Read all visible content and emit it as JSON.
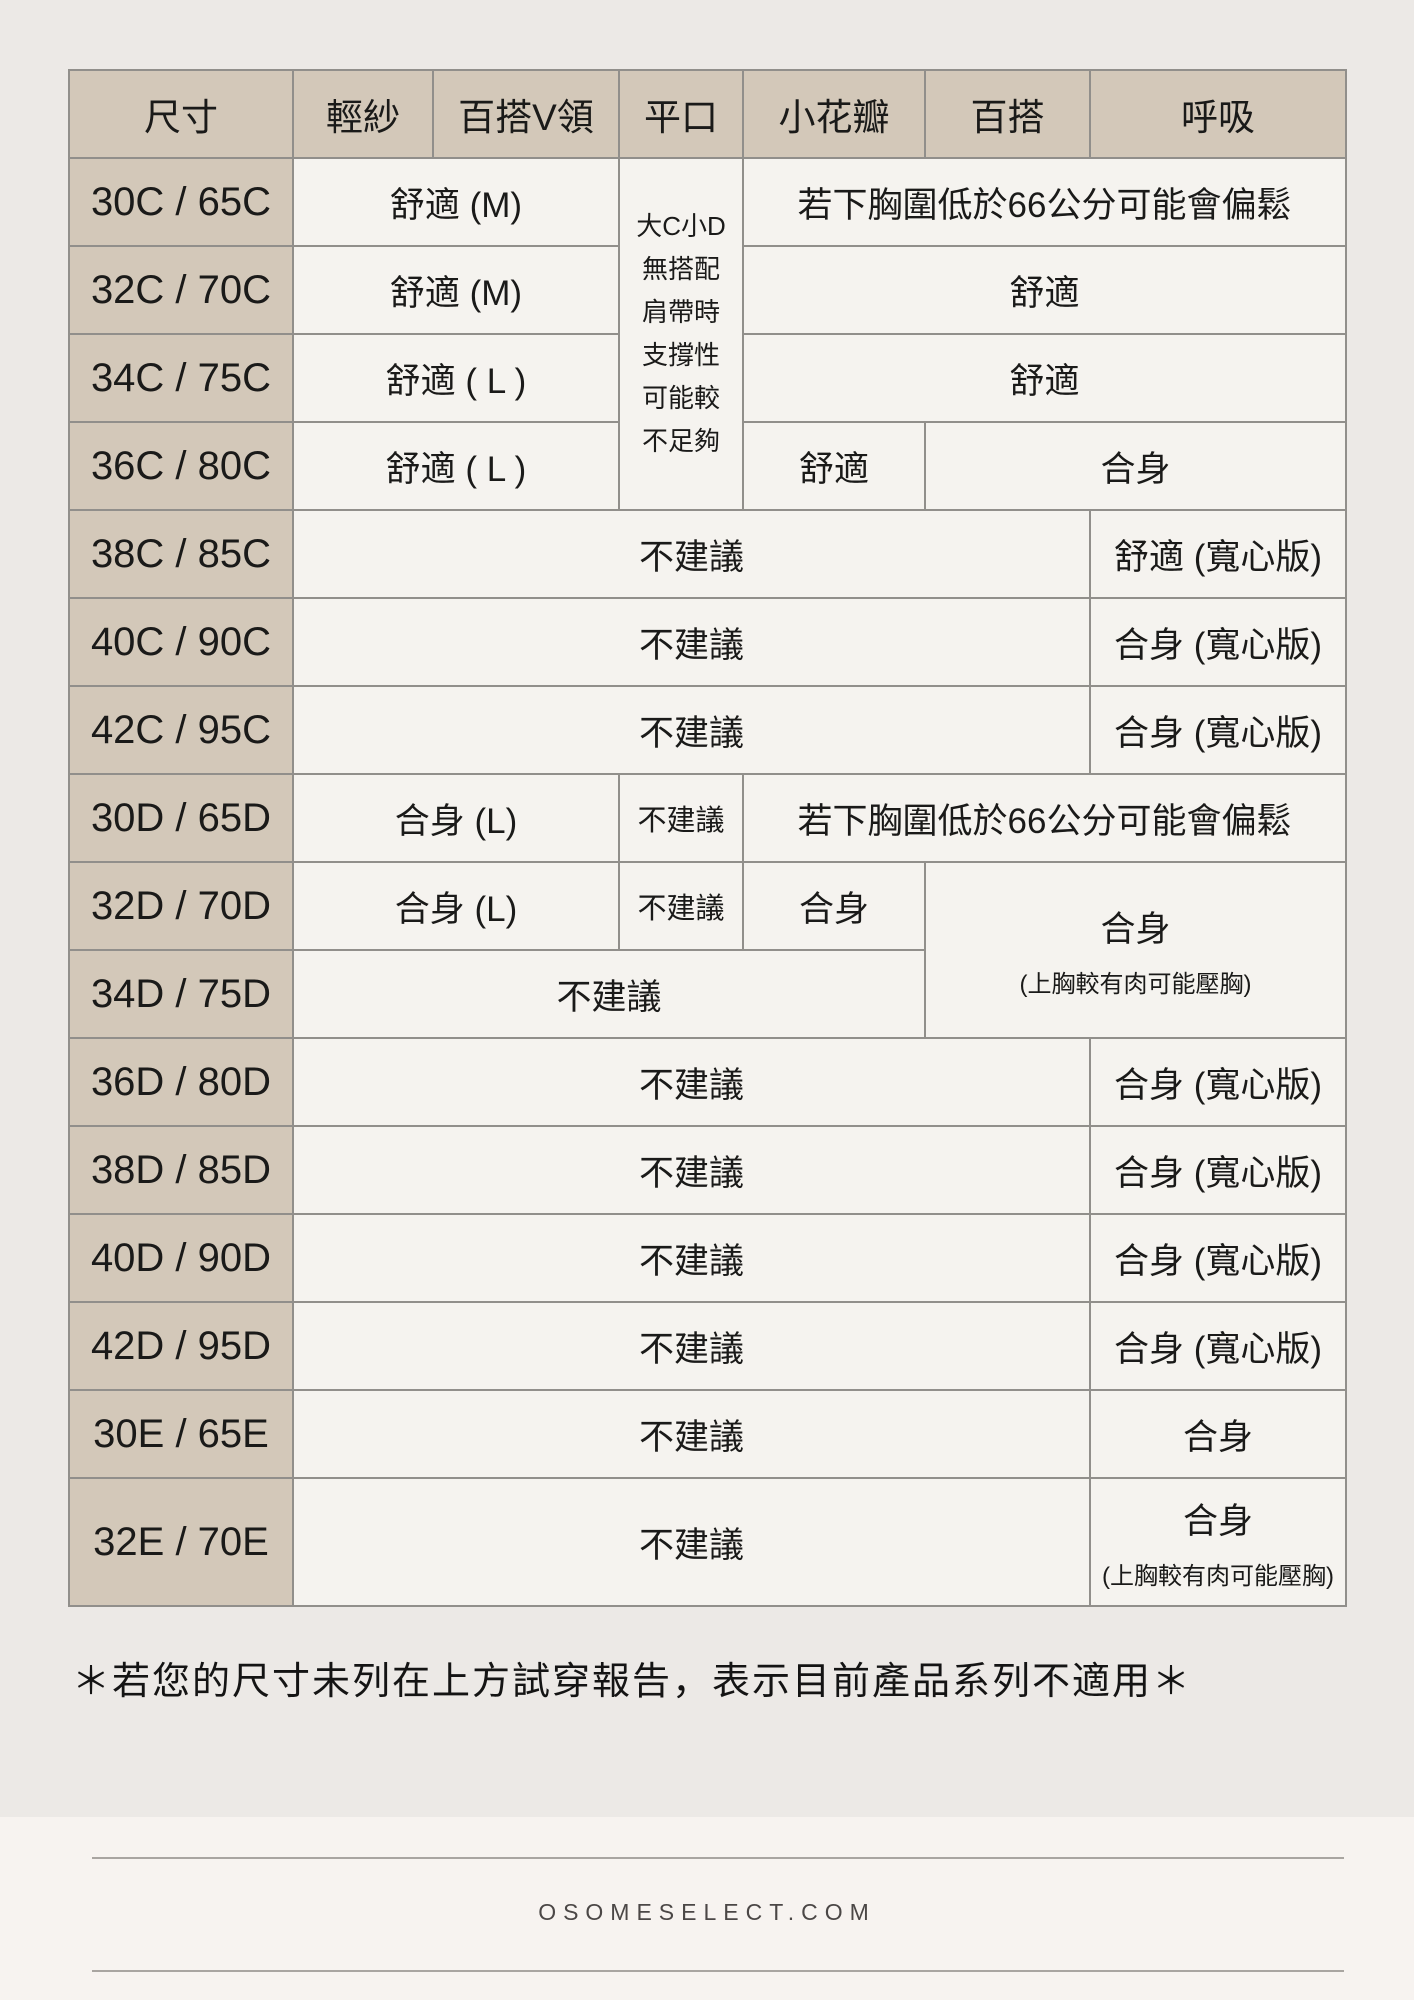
{
  "table": {
    "columns": [
      "尺寸",
      "輕紗",
      "百搭V領",
      "平口",
      "小花瓣",
      "百搭",
      "呼吸"
    ],
    "rows": [
      {
        "size": "30C / 65C",
        "cells": [
          {
            "t": "舒適 (M)",
            "cs": 2
          },
          {
            "kind": "note",
            "rs": 4,
            "lines": [
              "大C小D",
              "無搭配",
              "肩帶時",
              "支撐性",
              "可能較",
              "不足夠"
            ]
          },
          {
            "t": "若下胸圍低於66公分可能會偏鬆",
            "cs": 3
          }
        ]
      },
      {
        "size": "32C / 70C",
        "cells": [
          {
            "t": "舒適 (M)",
            "cs": 2
          },
          {
            "t": "舒適",
            "cs": 3
          }
        ]
      },
      {
        "size": "34C / 75C",
        "cells": [
          {
            "t": "舒適 ( L )",
            "cs": 2
          },
          {
            "t": "舒適",
            "cs": 3
          }
        ]
      },
      {
        "size": "36C / 80C",
        "cells": [
          {
            "t": "舒適 ( L )",
            "cs": 2
          },
          {
            "t": "舒適"
          },
          {
            "t": "合身",
            "cs": 2
          }
        ]
      },
      {
        "size": "38C / 85C",
        "cells": [
          {
            "t": "不建議",
            "cs": 5
          },
          {
            "t": "舒適 (寬心版)"
          }
        ]
      },
      {
        "size": "40C / 90C",
        "cells": [
          {
            "t": "不建議",
            "cs": 5
          },
          {
            "t": "合身 (寬心版)"
          }
        ]
      },
      {
        "size": "42C / 95C",
        "cells": [
          {
            "t": "不建議",
            "cs": 5
          },
          {
            "t": "合身 (寬心版)"
          }
        ]
      },
      {
        "size": "30D / 65D",
        "cells": [
          {
            "t": "合身 (L)",
            "cs": 2
          },
          {
            "t": "不建議",
            "small": true
          },
          {
            "t": "若下胸圍低於66公分可能會偏鬆",
            "cs": 3
          }
        ]
      },
      {
        "size": "32D / 70D",
        "cells": [
          {
            "t": "合身 (L)",
            "cs": 2
          },
          {
            "t": "不建議",
            "small": true
          },
          {
            "t": "合身"
          },
          {
            "t": "合身",
            "sub": "(上胸較有肉可能壓胸)",
            "cs": 2,
            "rs": 2
          }
        ]
      },
      {
        "size": "34D / 75D",
        "cells": [
          {
            "t": "不建議",
            "cs": 4
          }
        ]
      },
      {
        "size": "36D / 80D",
        "cells": [
          {
            "t": "不建議",
            "cs": 5
          },
          {
            "t": "合身 (寬心版)"
          }
        ]
      },
      {
        "size": "38D / 85D",
        "cells": [
          {
            "t": "不建議",
            "cs": 5
          },
          {
            "t": "合身 (寬心版)"
          }
        ]
      },
      {
        "size": "40D / 90D",
        "cells": [
          {
            "t": "不建議",
            "cs": 5
          },
          {
            "t": "合身 (寬心版)"
          }
        ]
      },
      {
        "size": "42D / 95D",
        "cells": [
          {
            "t": "不建議",
            "cs": 5
          },
          {
            "t": "合身 (寬心版)"
          }
        ]
      },
      {
        "size": "30E / 65E",
        "cells": [
          {
            "t": "不建議",
            "cs": 5
          },
          {
            "t": "合身"
          }
        ]
      },
      {
        "size": "32E / 70E",
        "tall": true,
        "cells": [
          {
            "t": "不建議",
            "cs": 5
          },
          {
            "t": "合身",
            "sub": "(上胸較有肉可能壓胸)"
          }
        ]
      }
    ]
  },
  "footnote": "＊若您的尺寸未列在上方試穿報告，表示目前產品系列不適用＊",
  "footer": {
    "brand": "OSOMESELECT.COM"
  },
  "colors": {
    "header_bg": "#d3c8b9",
    "cell_bg": "#f5f3ef",
    "grid_border": "#918f8b",
    "page_top_bg": "#ece9e6",
    "page_bottom_bg": "#f7f3f0",
    "rule": "#a9a5a1",
    "brand_text": "#4b4746"
  }
}
